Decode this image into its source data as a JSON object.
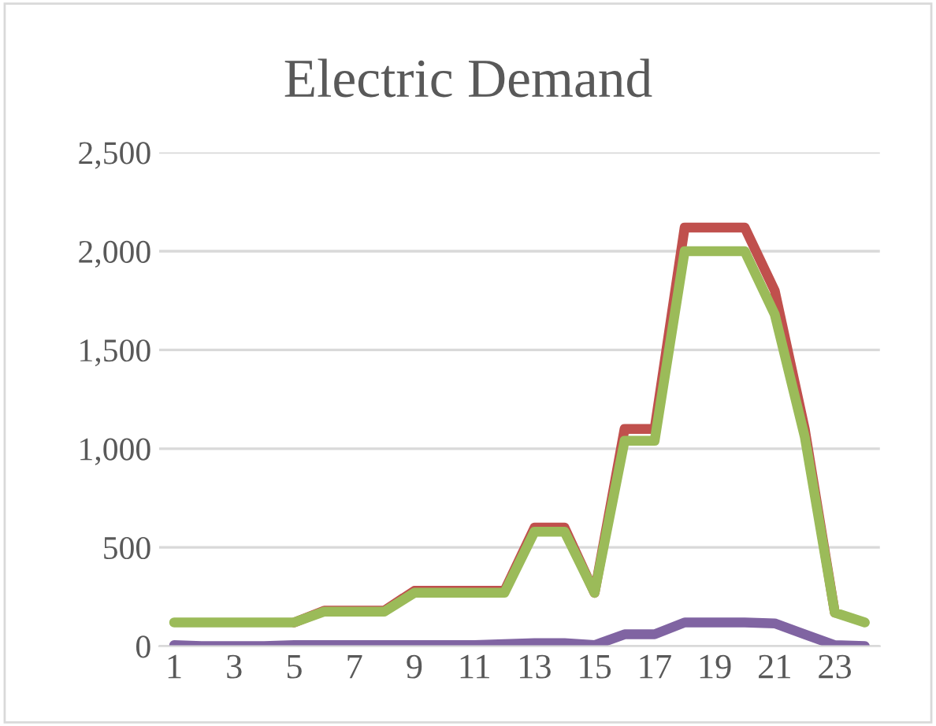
{
  "chart_data": {
    "type": "line",
    "title": "Electric Demand",
    "categories": [
      "1",
      null,
      "3",
      null,
      "5",
      null,
      "7",
      null,
      "9",
      null,
      "11",
      null,
      "13",
      null,
      "15",
      null,
      "17",
      null,
      "19",
      null,
      "21",
      null,
      "23",
      null
    ],
    "series": [
      {
        "color": "#c0504d",
        "values": [
          null,
          null,
          null,
          null,
          120,
          180,
          180,
          180,
          280,
          280,
          280,
          280,
          600,
          600,
          270,
          1100,
          1100,
          2120,
          2120,
          2120,
          1800,
          1100,
          170,
          null
        ]
      },
      {
        "color": "#9bbb59",
        "values": [
          120,
          120,
          120,
          120,
          120,
          175,
          175,
          175,
          270,
          270,
          270,
          270,
          580,
          580,
          270,
          1040,
          1040,
          2000,
          2000,
          2000,
          1680,
          1060,
          170,
          120
        ]
      },
      {
        "color": "#8064a2",
        "values": [
          5,
          0,
          0,
          0,
          5,
          5,
          5,
          5,
          5,
          5,
          5,
          10,
          15,
          15,
          5,
          60,
          60,
          120,
          120,
          120,
          115,
          60,
          5,
          0
        ]
      }
    ],
    "ylim": [
      0,
      2500
    ],
    "yticks": [
      {
        "value": 0,
        "label": "0"
      },
      {
        "value": 500,
        "label": "500"
      },
      {
        "value": 1000,
        "label": "1,000"
      },
      {
        "value": 1500,
        "label": "1,500"
      },
      {
        "value": 2000,
        "label": "2,000"
      },
      {
        "value": 2500,
        "label": "2,500"
      }
    ],
    "grid": "y",
    "legend": false
  }
}
